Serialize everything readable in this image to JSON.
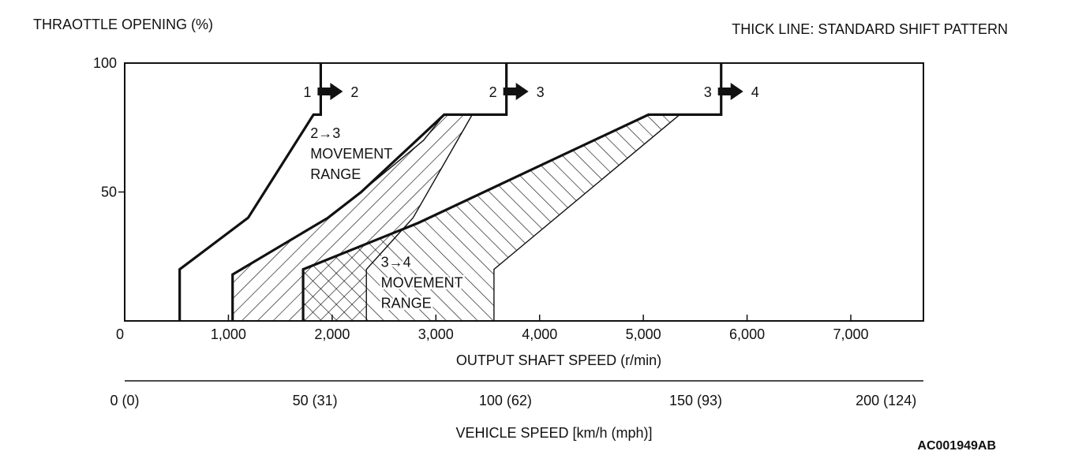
{
  "chart_data": {
    "type": "line",
    "header_left": "THRAOTTLE OPENING (%)",
    "header_right": "THICK LINE: STANDARD SHIFT PATTERN",
    "xlabel": "OUTPUT SHAFT SPEED (r/min)",
    "ylabel": "THRAOTTLE OPENING (%)",
    "xlim": [
      0,
      7700
    ],
    "ylim": [
      0,
      100
    ],
    "x_ticks": [
      0,
      1000,
      2000,
      3000,
      4000,
      5000,
      6000,
      7000
    ],
    "x_tick_labels": [
      "0",
      "1,000",
      "2,000",
      "3,000",
      "4,000",
      "5,000",
      "6,000",
      "7,000"
    ],
    "y_ticks": [
      0,
      50,
      100
    ],
    "y_tick_labels": [
      "",
      "50",
      "100"
    ],
    "x_origin_label": "0",
    "secondary_axis": {
      "label": "VEHICLE SPEED [km/h (mph)]",
      "ticks_kmh": [
        0,
        50,
        100,
        150,
        200
      ],
      "tick_labels": [
        "0 (0)",
        "50 (31)",
        "100 (62)",
        "150 (93)",
        "200 (124)"
      ],
      "kmh_to_rpm": 36.7
    },
    "shift_lines": [
      {
        "name": "1→2",
        "from": "1",
        "to": "2",
        "points": [
          [
            530,
            0
          ],
          [
            530,
            20
          ],
          [
            1190,
            40
          ],
          [
            1820,
            80
          ],
          [
            1890,
            80
          ],
          [
            1890,
            100
          ]
        ]
      },
      {
        "name": "2→3",
        "from": "2",
        "to": "3",
        "points": [
          [
            1040,
            0
          ],
          [
            1040,
            18
          ],
          [
            1960,
            40
          ],
          [
            2280,
            50
          ],
          [
            3080,
            80
          ],
          [
            3680,
            80
          ],
          [
            3680,
            100
          ]
        ]
      },
      {
        "name": "3→4",
        "from": "3",
        "to": "4",
        "points": [
          [
            1720,
            0
          ],
          [
            1720,
            20
          ],
          [
            2830,
            38
          ],
          [
            5050,
            80
          ],
          [
            5750,
            80
          ],
          [
            5750,
            100
          ]
        ]
      }
    ],
    "movement_ranges": [
      {
        "name": "2→3 MOVEMENT RANGE",
        "label_lines": [
          "2→3",
          "MOVEMENT",
          "RANGE"
        ],
        "polygon": [
          [
            1040,
            0
          ],
          [
            1040,
            18
          ],
          [
            1960,
            40
          ],
          [
            2280,
            50
          ],
          [
            2880,
            70
          ],
          [
            3080,
            80
          ],
          [
            3350,
            80
          ],
          [
            2780,
            40
          ],
          [
            2330,
            20
          ],
          [
            2330,
            0
          ]
        ]
      },
      {
        "name": "3→4 MOVEMENT RANGE",
        "label_lines": [
          "3→4",
          "MOVEMENT",
          "RANGE"
        ],
        "polygon": [
          [
            1720,
            0
          ],
          [
            1720,
            20
          ],
          [
            2830,
            38
          ],
          [
            5050,
            80
          ],
          [
            5350,
            80
          ],
          [
            3560,
            20
          ],
          [
            3560,
            0
          ]
        ]
      }
    ],
    "image_code": "AC001949AB"
  }
}
